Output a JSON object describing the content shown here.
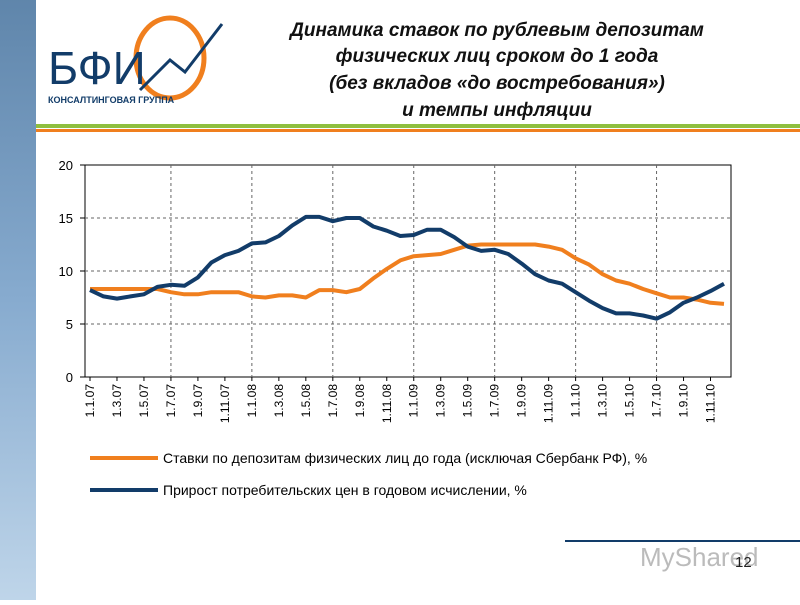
{
  "logo": {
    "name": "БФИ",
    "subtitle": "КОНСАЛТИНГОВАЯ ГРУППА"
  },
  "page_number": "12",
  "watermark": "MyShared",
  "chart_data": {
    "type": "line",
    "title": [
      "Динамика ставок по рублевым депозитам",
      "физических лиц сроком до 1 года",
      "(без вкладов «до востребования»)",
      "и темпы инфляции"
    ],
    "categories": [
      "1.1.07",
      null,
      "1.3.07",
      null,
      "1.5.07",
      null,
      "1.7.07",
      null,
      "1.9.07",
      null,
      "1.11.07",
      null,
      "1.1.08",
      null,
      "1.3.08",
      null,
      "1.5.08",
      null,
      "1.7.08",
      null,
      "1.9.08",
      null,
      "1.11.08",
      null,
      "1.1.09",
      null,
      "1.3.09",
      null,
      "1.5.09",
      null,
      "1.7.09",
      null,
      "1.9.09",
      null,
      "1.11.09",
      null,
      "1.1.10",
      null,
      "1.3.10",
      null,
      "1.5.10",
      null,
      "1.7.10",
      null,
      "1.9.10",
      null,
      "1.11.10",
      null
    ],
    "series": [
      {
        "name": "Ставки по депозитам физических лиц до года (исключая Сбербанк РФ), %",
        "color": "#f07f1e",
        "values": [
          8.3,
          8.3,
          8.3,
          8.3,
          8.3,
          8.3,
          8.0,
          7.8,
          7.8,
          8.0,
          8.0,
          8.0,
          7.6,
          7.5,
          7.7,
          7.7,
          7.5,
          8.2,
          8.2,
          8.0,
          8.3,
          9.3,
          10.2,
          11.0,
          11.4,
          11.5,
          11.6,
          12.0,
          12.4,
          12.5,
          12.5,
          12.5,
          12.5,
          12.5,
          12.3,
          12.0,
          11.2,
          10.6,
          9.7,
          9.1,
          8.8,
          8.3,
          7.9,
          7.5,
          7.5,
          7.3,
          7.0,
          6.9
        ]
      },
      {
        "name": "Прирост потребительских цен в годовом исчислении, %",
        "color": "#123c69",
        "values": [
          8.2,
          7.6,
          7.4,
          7.6,
          7.8,
          8.5,
          8.7,
          8.6,
          9.4,
          10.8,
          11.5,
          11.9,
          12.6,
          12.7,
          13.3,
          14.3,
          15.1,
          15.1,
          14.7,
          15.0,
          15.0,
          14.2,
          13.8,
          13.3,
          13.4,
          13.9,
          13.9,
          13.2,
          12.3,
          11.9,
          12.0,
          11.6,
          10.7,
          9.7,
          9.1,
          8.8,
          8.0,
          7.2,
          6.5,
          6.0,
          6.0,
          5.8,
          5.5,
          6.1,
          7.0,
          7.5,
          8.1,
          8.8
        ]
      }
    ],
    "ylim": [
      0,
      20
    ],
    "yticks": [
      0,
      5,
      10,
      15,
      20
    ],
    "grid": true
  }
}
